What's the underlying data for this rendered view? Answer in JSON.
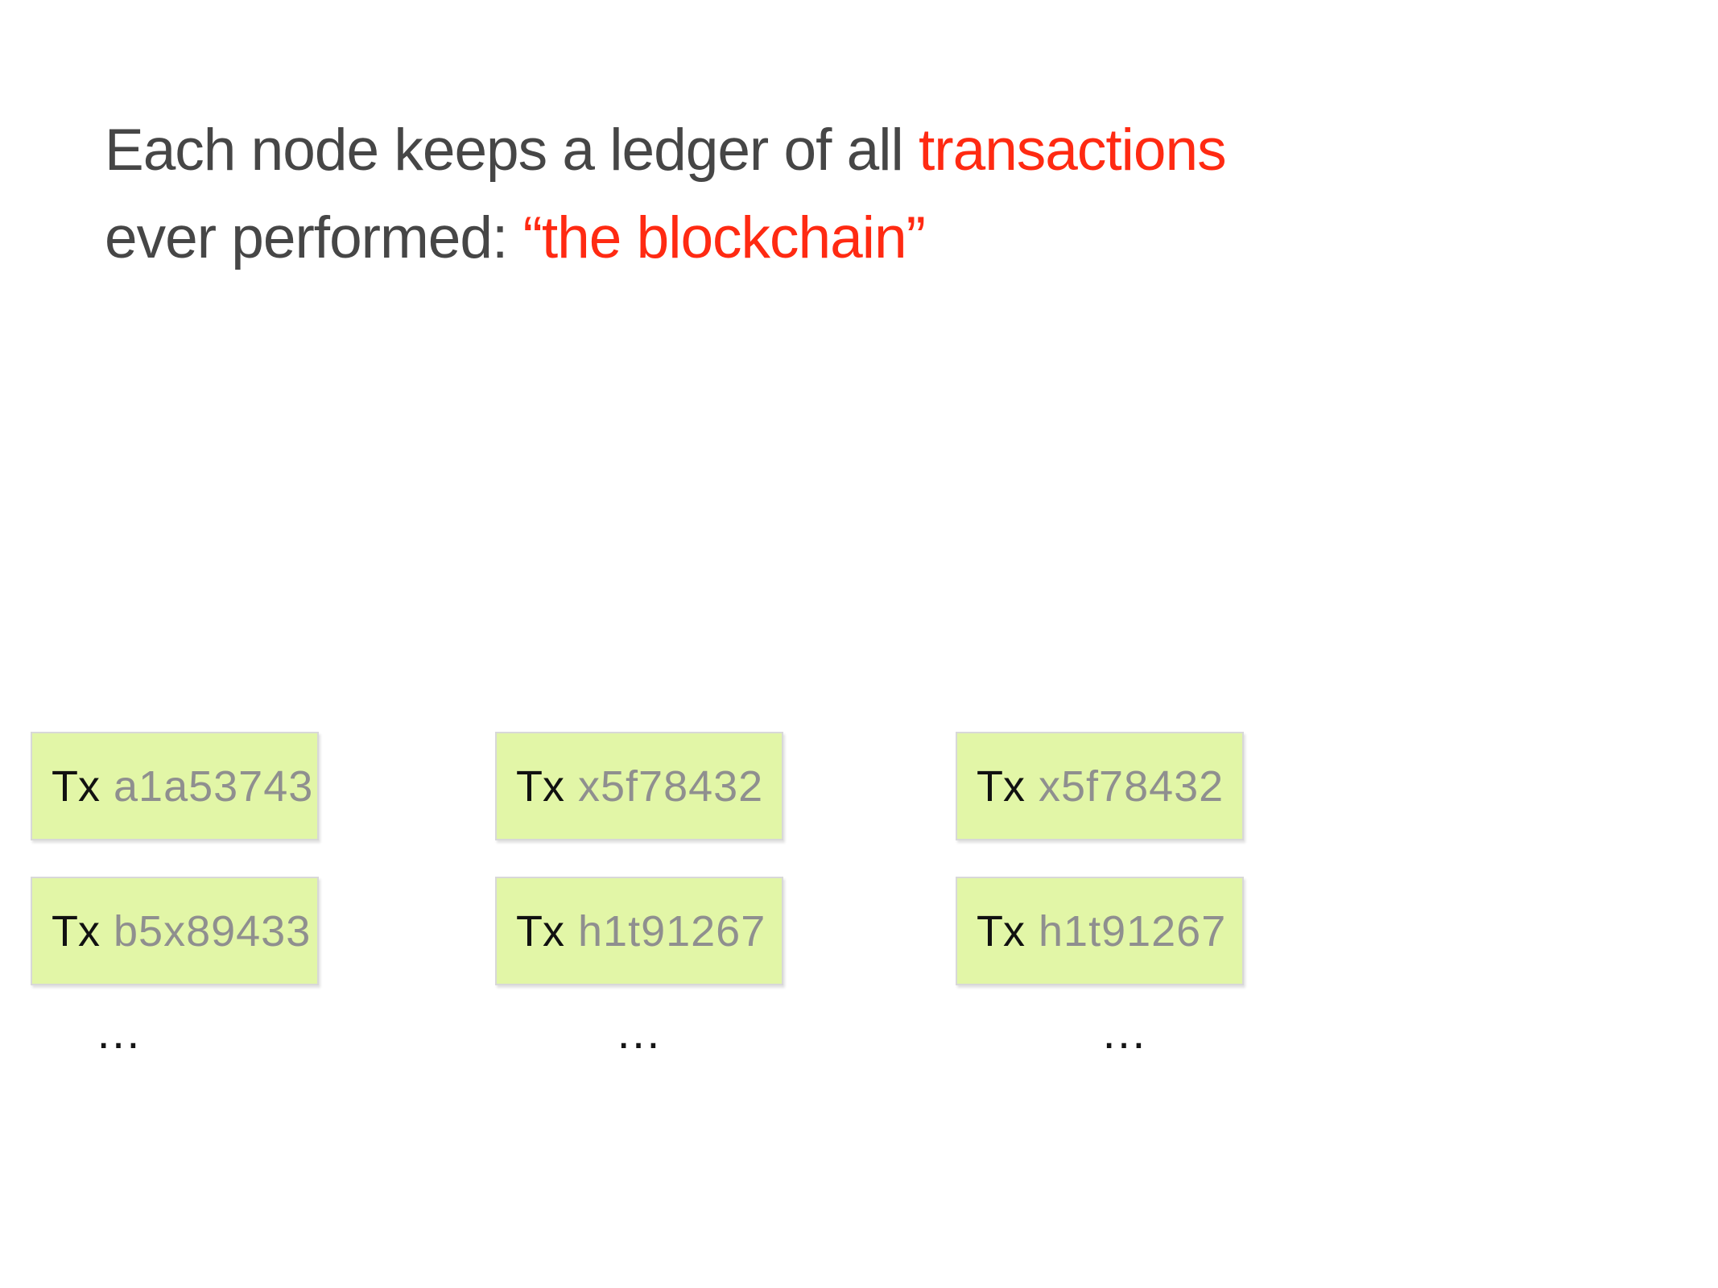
{
  "slide": {
    "title": {
      "line1_plain": "Each node keeps a ledger of all ",
      "line1_highlight": "transactions",
      "line2_plain": "ever performed: ",
      "line2_highlight": "“the blockchain”"
    },
    "colors": {
      "title_text": "#464646",
      "highlight_red": "#ff2a12",
      "box_fill": "#e2f6a7",
      "box_border": "#d8d8d8",
      "tx_label": "#111111",
      "tx_id": "#8f8f8f"
    },
    "ledgers": [
      {
        "transactions": [
          {
            "prefix": "Tx",
            "id": "a1a53743"
          },
          {
            "prefix": "Tx",
            "id": "b5x89433"
          }
        ],
        "more": "…"
      },
      {
        "transactions": [
          {
            "prefix": "Tx",
            "id": "x5f78432"
          },
          {
            "prefix": "Tx",
            "id": "h1t91267"
          }
        ],
        "more": "…"
      },
      {
        "transactions": [
          {
            "prefix": "Tx",
            "id": "x5f78432"
          },
          {
            "prefix": "Tx",
            "id": "h1t91267"
          }
        ],
        "more": "…"
      }
    ]
  }
}
